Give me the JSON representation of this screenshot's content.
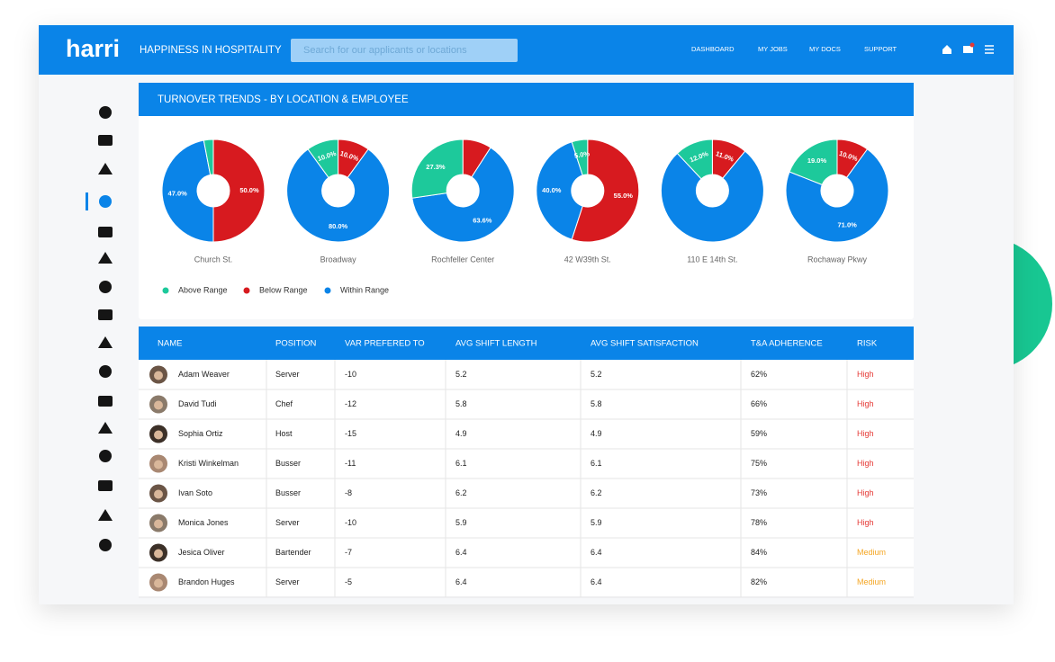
{
  "header": {
    "logo": "harri",
    "tagline": "HAPPINESS IN HOSPITALITY",
    "search_placeholder": "Search for our applicants or locations",
    "links": [
      "DASHBOARD",
      "MY JOBS",
      "MY DOCS",
      "SUPPORT"
    ]
  },
  "card": {
    "title": "TURNOVER TRENDS - BY LOCATION & EMPLOYEE"
  },
  "chart_data": [
    {
      "type": "pie",
      "title": "Church St.",
      "categories": [
        "Above Range",
        "Below Range",
        "Within Range"
      ],
      "colors": [
        "#1dc99b",
        "#d71a1f",
        "#0a84e8"
      ],
      "values": [
        3,
        50,
        47
      ],
      "value_labels": [
        null,
        "50.0%",
        "47.0%"
      ]
    },
    {
      "type": "pie",
      "title": "Broadway",
      "categories": [
        "Above Range",
        "Below Range",
        "Within Range"
      ],
      "colors": [
        "#1dc99b",
        "#d71a1f",
        "#0a84e8"
      ],
      "values": [
        10,
        10,
        80
      ],
      "value_labels": [
        "10.0%",
        "10.0%",
        "80.0%"
      ]
    },
    {
      "type": "pie",
      "title": "Rochfeller Center",
      "categories": [
        "Above Range",
        "Below Range",
        "Within Range"
      ],
      "colors": [
        "#1dc99b",
        "#d71a1f",
        "#0a84e8"
      ],
      "values": [
        27.3,
        9.1,
        63.6
      ],
      "value_labels": [
        "27.3%",
        null,
        "63.6%"
      ]
    },
    {
      "type": "pie",
      "title": "42 W39th St.",
      "categories": [
        "Above Range",
        "Below Range",
        "Within Range"
      ],
      "colors": [
        "#1dc99b",
        "#d71a1f",
        "#0a84e8"
      ],
      "values": [
        5,
        55,
        40
      ],
      "value_labels": [
        "5.0%",
        "55.0%",
        "40.0%"
      ]
    },
    {
      "type": "pie",
      "title": "110 E 14th St.",
      "categories": [
        "Above Range",
        "Below Range",
        "Within Range"
      ],
      "colors": [
        "#1dc99b",
        "#d71a1f",
        "#0a84e8"
      ],
      "values": [
        12,
        11,
        77
      ],
      "value_labels": [
        "12.0%",
        "11.0%",
        null
      ]
    },
    {
      "type": "pie",
      "title": "Rochaway Pkwy",
      "categories": [
        "Above Range",
        "Below Range",
        "Within Range"
      ],
      "colors": [
        "#1dc99b",
        "#d71a1f",
        "#0a84e8"
      ],
      "values": [
        19,
        10,
        71
      ],
      "value_labels": [
        "19.0%",
        "10.0%",
        "71.0%"
      ]
    }
  ],
  "table": {
    "headers": [
      "NAME",
      "POSITION",
      "VAR PREFERED TO",
      "AVG SHIFT LENGTH",
      "AVG SHIFT SATISFACTION",
      "T&A ADHERENCE",
      "RISK"
    ],
    "risk_colors": {
      "High": "#e53935",
      "Medium": "#f5a623"
    },
    "rows": [
      [
        "Adam Weaver",
        "Server",
        "-10",
        "5.2",
        "5.2",
        "62%",
        "High"
      ],
      [
        "David Tudi",
        "Chef",
        "-12",
        "5.8",
        "5.8",
        "66%",
        "High"
      ],
      [
        "Sophia Ortiz",
        "Host",
        "-15",
        "4.9",
        "4.9",
        "59%",
        "High"
      ],
      [
        "Kristi Winkelman",
        "Busser",
        "-11",
        "6.1",
        "6.1",
        "75%",
        "High"
      ],
      [
        "Ivan Soto",
        "Busser",
        "-8",
        "6.2",
        "6.2",
        "73%",
        "High"
      ],
      [
        "Monica Jones",
        "Server",
        "-10",
        "5.9",
        "5.9",
        "78%",
        "High"
      ],
      [
        "Jesica Oliver",
        "Bartender",
        "-7",
        "6.4",
        "6.4",
        "84%",
        "Medium"
      ],
      [
        "Brandon Huges",
        "Server",
        "-5",
        "6.4",
        "6.4",
        "82%",
        "Medium"
      ]
    ]
  }
}
